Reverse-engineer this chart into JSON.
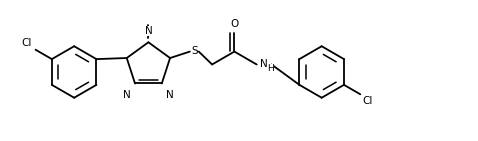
{
  "bg_color": "#ffffff",
  "line_color": "#000000",
  "line_width": 1.3,
  "font_size": 7.5,
  "fig_width": 4.78,
  "fig_height": 1.41,
  "dpi": 100,
  "xlim": [
    0,
    9.56
  ],
  "ylim": [
    0,
    2.82
  ]
}
